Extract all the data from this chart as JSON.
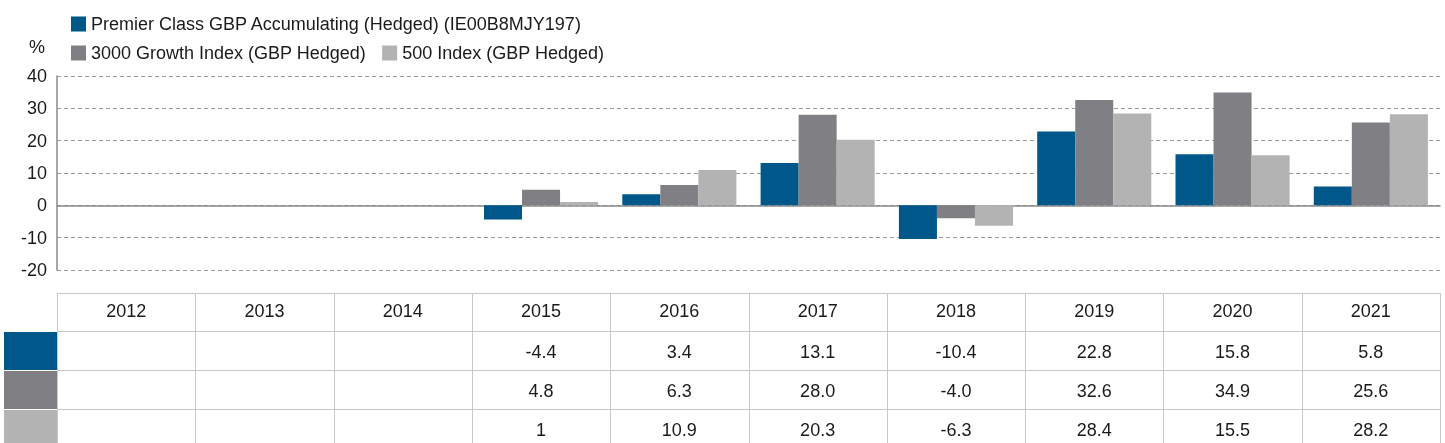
{
  "chart_data": {
    "type": "bar",
    "ylabel": "%",
    "categories": [
      "2012",
      "2013",
      "2014",
      "2015",
      "2016",
      "2017",
      "2018",
      "2019",
      "2020",
      "2021"
    ],
    "series": [
      {
        "name": "Premier Class GBP Accumulating (Hedged) (IE00B8MJY197)",
        "color": "#00578a",
        "values": [
          null,
          null,
          null,
          -4.4,
          3.4,
          13.1,
          -10.4,
          22.8,
          15.8,
          5.8
        ],
        "value_labels": [
          null,
          null,
          null,
          "-4.4",
          "3.4",
          "13.1",
          "-10.4",
          "22.8",
          "15.8",
          "5.8"
        ]
      },
      {
        "name": "3000 Growth Index (GBP Hedged)",
        "color": "#808084",
        "values": [
          null,
          null,
          null,
          4.8,
          6.3,
          28.0,
          -4.0,
          32.6,
          34.9,
          25.6
        ],
        "value_labels": [
          null,
          null,
          null,
          "4.8",
          "6.3",
          "28.0",
          "-4.0",
          "32.6",
          "34.9",
          "25.6"
        ]
      },
      {
        "name": "500 Index (GBP Hedged)",
        "color": "#b3b3b3",
        "values": [
          null,
          null,
          null,
          1,
          10.9,
          20.3,
          -6.3,
          28.4,
          15.5,
          28.2
        ],
        "value_labels": [
          null,
          null,
          null,
          "1",
          "10.9",
          "20.3",
          "-6.3",
          "28.4",
          "15.5",
          "28.2"
        ]
      }
    ],
    "ylim": [
      -20,
      40
    ],
    "yticks": [
      -20,
      -10,
      0,
      10,
      20,
      30,
      40
    ],
    "grid": "y",
    "legend": "top left"
  }
}
